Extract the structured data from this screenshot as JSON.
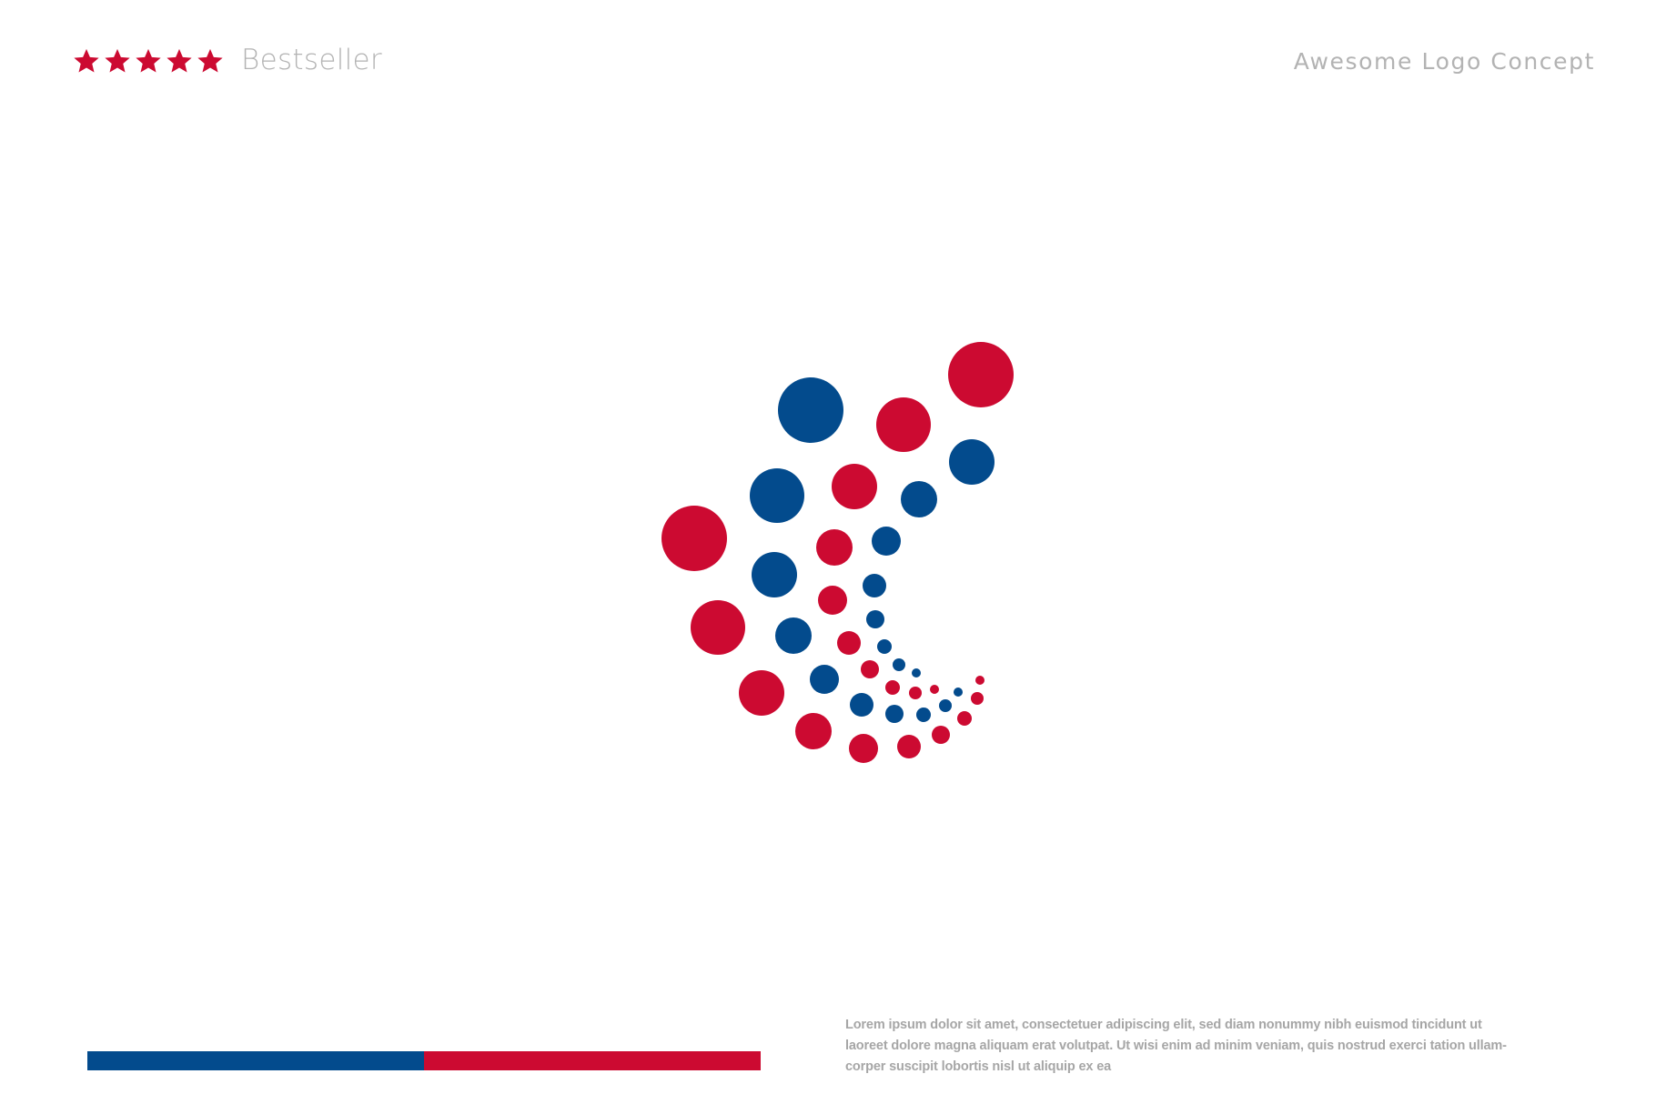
{
  "header": {
    "rating": 5,
    "rating_max": 5,
    "star_icon": "star-icon",
    "badge_label": "Bestseller",
    "title": "Awesome Logo Concept"
  },
  "colors": {
    "brand_red": "#cc0a31",
    "brand_blue": "#034b8d",
    "text_gray": "#b3b3b3"
  },
  "footer": {
    "description_lines": [
      "Lorem ipsum dolor sit amet, consectetuer adipiscing elit, sed diam nonummy nibh euismod tincidunt ut",
      "laoreet dolore magna aliquam erat volutpat. Ut wisi enim ad minim veniam, quis nostrud exerci tation ullam-",
      "corper suscipit lobortis nisl ut aliquip ex ea"
    ]
  }
}
